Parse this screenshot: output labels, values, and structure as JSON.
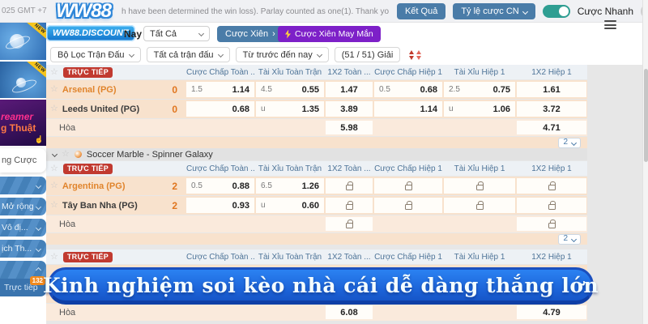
{
  "colors": {
    "accent_blue": "#4a7ca8",
    "purple": "#7d20c8",
    "toggle_teal": "#2f9e92",
    "live_red": "#c13a30",
    "team_highlight_orange": "#e0842c",
    "banner_blue": "#1b61d6"
  },
  "topbar": {
    "gmt_text": "025 GMT +7",
    "marquee_text": "h have been determined the win loss). Parlay counted as one(1). Thank you!",
    "result_button": "Kết Quả",
    "odds_type_button": "Tỷ lệ cược CN",
    "quick_bet_label": "Cược Nhanh"
  },
  "brand": {
    "logo_text": "WW88",
    "discount_text": "WW88.DISCOUNT"
  },
  "toolbar": {
    "day_label": "Nay",
    "filter_select_value": "Tất Cả",
    "parlay_button": "Cược Xiên",
    "parlay_arrow": "›",
    "lucky_parlay_button": "Cược Xiên May Mắn"
  },
  "filter_bar": {
    "match_filter": "Bộ Lọc Trận Đấu",
    "all_matches": "Tất cả trận đấu",
    "time_range": "Từ trước đến nay",
    "league_count": "(51 / 51) Giải"
  },
  "sidebar": {
    "ribbon_text": "NEW",
    "promo3_line1": "reamer",
    "promo3_line2": "g Thuật",
    "card_text": "ng Cược",
    "menu": [
      {
        "label": "",
        "chevron": "down"
      },
      {
        "label": "Mở rộng",
        "chevron": "down"
      },
      {
        "label": "Vô đị...",
        "chevron": "down"
      },
      {
        "label": "ịch Th...",
        "chevron": "down"
      },
      {
        "label": "",
        "chevron": "up"
      }
    ],
    "live_item": {
      "label": "Trực tiếp",
      "badge": "132"
    }
  },
  "table_header": {
    "live_badge": "TRỰC TIẾP",
    "columns": [
      "Cược Chấp Toàn ...",
      "Tài Xỉu Toàn Trận",
      "1X2 Toàn ...",
      "Cược Chấp Hiệp 1",
      "Tài Xỉu Hiệp 1",
      "1X2 Hiệp 1"
    ]
  },
  "sections": [
    {
      "type": "table",
      "rows": [
        {
          "team": "Arsenal (PG)",
          "style": "highlight",
          "score": "0",
          "odds": [
            [
              "1.5",
              "1.14"
            ],
            [
              "4.5",
              "0.55"
            ],
            "1.47",
            [
              "0.5",
              "0.68"
            ],
            [
              "2.5",
              "0.75"
            ],
            "1.61"
          ]
        },
        {
          "team": "Leeds United (PG)",
          "style": "normal",
          "score": "0",
          "odds": [
            [
              "",
              "0.68"
            ],
            [
              "u",
              "1.35"
            ],
            "3.89",
            [
              "",
              "1.14"
            ],
            [
              "u",
              "1.06"
            ],
            "3.72"
          ]
        },
        {
          "team": "Hòa",
          "style": "draw",
          "score": "",
          "odds": [
            null,
            null,
            "5.98",
            null,
            null,
            "4.71"
          ]
        }
      ],
      "pagination": "2"
    },
    {
      "type": "divider",
      "title": "Soccer Marble - Spinner Galaxy"
    },
    {
      "type": "table",
      "rows": [
        {
          "team": "Argentina (PG)",
          "style": "highlight",
          "score": "2",
          "odds": [
            [
              "0.5",
              "0.88"
            ],
            [
              "6.5",
              "1.26"
            ],
            "LOCK",
            "LOCK",
            "LOCK",
            "LOCK"
          ]
        },
        {
          "team": "Tây Ban Nha (PG)",
          "style": "normal",
          "score": "2",
          "odds": [
            [
              "",
              "0.93"
            ],
            [
              "u",
              "0.60"
            ],
            "LOCK",
            "LOCK",
            "LOCK",
            "LOCK"
          ]
        },
        {
          "team": "Hòa",
          "style": "draw",
          "score": "",
          "odds": [
            null,
            null,
            "LOCK",
            null,
            null,
            "LOCK"
          ]
        }
      ],
      "pagination": "2"
    },
    {
      "type": "table",
      "rows": [
        {
          "team": "",
          "style": "normal",
          "score": "",
          "odds": [
            null,
            null,
            null,
            null,
            null,
            null
          ]
        },
        {
          "team": "",
          "style": "normal",
          "score": "",
          "odds": [
            null,
            null,
            null,
            null,
            null,
            null
          ]
        },
        {
          "team": "Hòa",
          "style": "draw",
          "score": "",
          "odds": [
            null,
            null,
            "6.08",
            null,
            null,
            "4.79"
          ]
        }
      ]
    }
  ],
  "overlay_banner": {
    "text": "Kinh nghiệm soi kèo nhà cái dễ dàng thắng lớn"
  }
}
